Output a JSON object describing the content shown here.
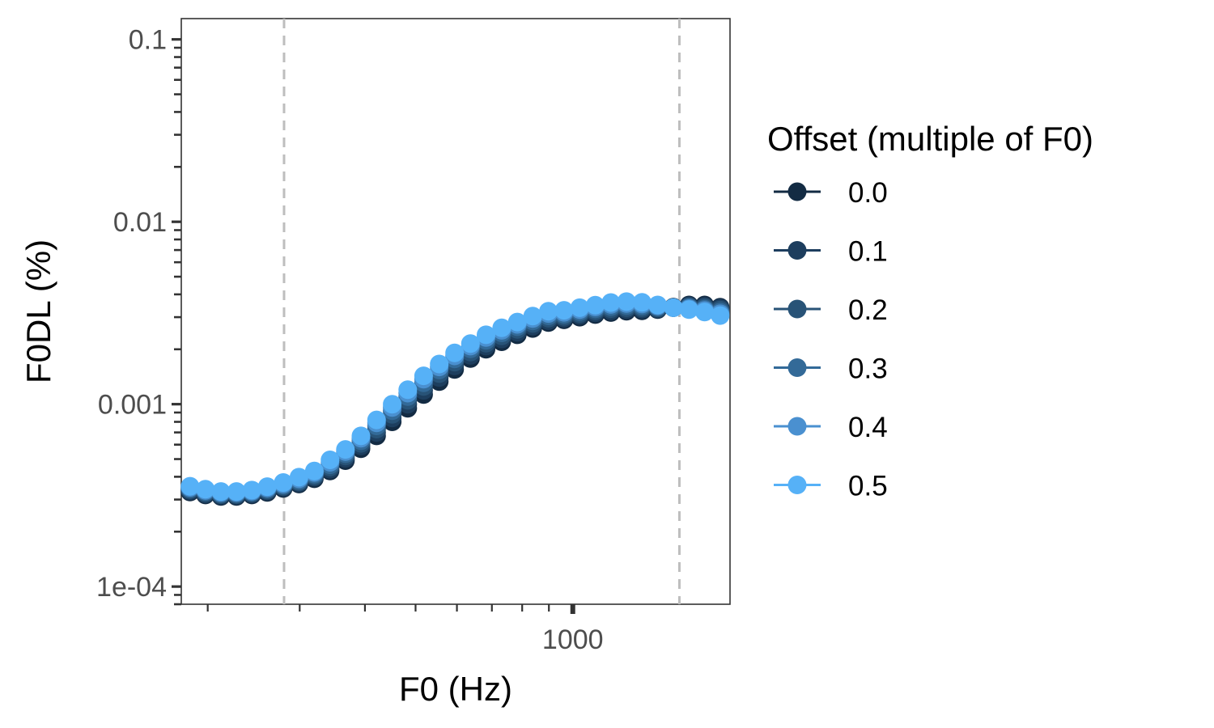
{
  "chart_data": {
    "type": "line",
    "title": "",
    "xlabel": "F0 (Hz)",
    "ylabel": "F0DL (%)",
    "xscale": "log",
    "yscale": "log",
    "xlim": [
      178,
      2000
    ],
    "ylim": [
      8e-05,
      0.13
    ],
    "x_ticks": [
      {
        "value": 1000,
        "label": "1000"
      }
    ],
    "x_minor_ticks": [
      200,
      300,
      400,
      500,
      600,
      700,
      800,
      900
    ],
    "y_ticks": [
      {
        "value": 0.0001,
        "label": "1e-04"
      },
      {
        "value": 0.001,
        "label": "0.001"
      },
      {
        "value": 0.01,
        "label": "0.01"
      },
      {
        "value": 0.1,
        "label": "0.1"
      }
    ],
    "reference_lines_x": [
      280,
      1600
    ],
    "reference_line_color": "#bebebe",
    "grid": false,
    "legend_position": "right",
    "legend_title": "Offset (multiple of F0)",
    "x": [
      185,
      198,
      212,
      227,
      243,
      260,
      279,
      299,
      320,
      343,
      367,
      393,
      421,
      451,
      483,
      518,
      555,
      594,
      637,
      682,
      731,
      783,
      838,
      898,
      962,
      1031,
      1104,
      1183,
      1267,
      1357,
      1454,
      1558,
      1669,
      1788,
      1915
    ],
    "fit_line": [
      0.00034,
      0.00033,
      0.000328,
      0.000325,
      0.000328,
      0.000335,
      0.00035,
      0.000375,
      0.00041,
      0.00046,
      0.00053,
      0.00062,
      0.00074,
      0.00089,
      0.00107,
      0.00128,
      0.00151,
      0.00176,
      0.00201,
      0.00225,
      0.00248,
      0.00268,
      0.00285,
      0.00299,
      0.0031,
      0.00319,
      0.00326,
      0.00331,
      0.00334,
      0.00335,
      0.00335,
      0.00333,
      0.0033,
      0.00325,
      0.00318
    ],
    "fit_line_color": "#3d6fd6",
    "series": [
      {
        "name": "0.0",
        "color": "#132b43",
        "values": [
          0.00033,
          0.000318,
          0.000312,
          0.000312,
          0.000318,
          0.000328,
          0.000345,
          0.000365,
          0.00039,
          0.00043,
          0.00049,
          0.00057,
          0.00067,
          0.0008,
          0.00095,
          0.00113,
          0.00133,
          0.00155,
          0.00178,
          0.002,
          0.0022,
          0.0024,
          0.0026,
          0.0028,
          0.0029,
          0.003,
          0.0031,
          0.00318,
          0.00323,
          0.00325,
          0.0033,
          0.0034,
          0.0035,
          0.0035,
          0.0034
        ]
      },
      {
        "name": "0.1",
        "color": "#1d3e5e",
        "values": [
          0.000335,
          0.000322,
          0.000316,
          0.000316,
          0.000322,
          0.000333,
          0.00035,
          0.00037,
          0.000398,
          0.00044,
          0.000505,
          0.00059,
          0.0007,
          0.00084,
          0.001,
          0.00119,
          0.0014,
          0.00162,
          0.00185,
          0.00208,
          0.00228,
          0.00248,
          0.00268,
          0.00287,
          0.00296,
          0.00307,
          0.00317,
          0.00325,
          0.0033,
          0.00331,
          0.00333,
          0.0034,
          0.00346,
          0.00344,
          0.00336
        ]
      },
      {
        "name": "0.2",
        "color": "#285377",
        "values": [
          0.00034,
          0.000327,
          0.00032,
          0.00032,
          0.000326,
          0.000338,
          0.000355,
          0.000376,
          0.000405,
          0.000452,
          0.00052,
          0.00061,
          0.00073,
          0.00088,
          0.00105,
          0.00125,
          0.00147,
          0.0017,
          0.00193,
          0.00216,
          0.00237,
          0.00257,
          0.00277,
          0.00296,
          0.00303,
          0.00314,
          0.00325,
          0.00334,
          0.00338,
          0.00338,
          0.00337,
          0.00338,
          0.00342,
          0.00338,
          0.00328
        ]
      },
      {
        "name": "0.3",
        "color": "#336a98",
        "values": [
          0.000345,
          0.000332,
          0.000324,
          0.000324,
          0.00033,
          0.000343,
          0.00036,
          0.000382,
          0.000413,
          0.000465,
          0.000535,
          0.00063,
          0.00076,
          0.00092,
          0.0011,
          0.00131,
          0.00154,
          0.00177,
          0.00201,
          0.00224,
          0.00246,
          0.00266,
          0.00286,
          0.00305,
          0.00311,
          0.00322,
          0.00333,
          0.00343,
          0.00347,
          0.00346,
          0.00342,
          0.00338,
          0.00338,
          0.00332,
          0.0032
        ]
      },
      {
        "name": "0.4",
        "color": "#4a90d0",
        "values": [
          0.00035,
          0.000337,
          0.000328,
          0.000328,
          0.000334,
          0.000348,
          0.000366,
          0.00039,
          0.000422,
          0.00048,
          0.00055,
          0.00065,
          0.00079,
          0.00096,
          0.00115,
          0.00137,
          0.0016,
          0.00184,
          0.00208,
          0.00232,
          0.00254,
          0.00274,
          0.00295,
          0.00314,
          0.00319,
          0.0033,
          0.00341,
          0.00352,
          0.00356,
          0.00354,
          0.00346,
          0.00338,
          0.00334,
          0.00326,
          0.00313
        ]
      },
      {
        "name": "0.5",
        "color": "#56b1f7",
        "values": [
          0.000355,
          0.000342,
          0.000332,
          0.000332,
          0.000338,
          0.000353,
          0.000372,
          0.000398,
          0.00043,
          0.000495,
          0.000565,
          0.00067,
          0.00082,
          0.001,
          0.0012,
          0.00143,
          0.00166,
          0.00191,
          0.00215,
          0.0024,
          0.00262,
          0.00282,
          0.00304,
          0.00323,
          0.00327,
          0.00338,
          0.00349,
          0.00361,
          0.00365,
          0.00362,
          0.0035,
          0.00338,
          0.0033,
          0.0032,
          0.00306
        ]
      }
    ]
  }
}
